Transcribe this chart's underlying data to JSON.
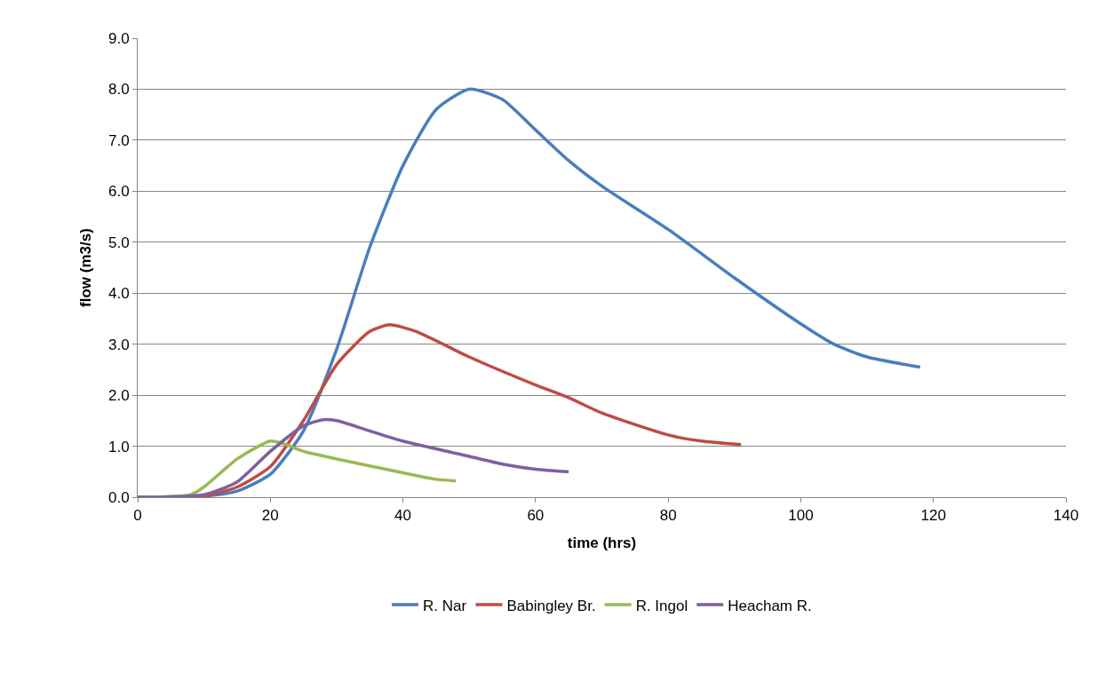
{
  "chart_data": {
    "type": "line",
    "xlabel": "time (hrs)",
    "ylabel": "flow (m3/s)",
    "xlim": [
      0,
      140
    ],
    "xticks": [
      0,
      20,
      40,
      60,
      80,
      100,
      120,
      140
    ],
    "ylim": [
      0,
      9
    ],
    "yticks": [
      {
        "value": 0,
        "label": "0.0"
      },
      {
        "value": 1,
        "label": "1.0"
      },
      {
        "value": 2,
        "label": "2.0"
      },
      {
        "value": 3,
        "label": "3.0"
      },
      {
        "value": 4,
        "label": "4.0"
      },
      {
        "value": 5,
        "label": "5.0"
      },
      {
        "value": 6,
        "label": "6.0"
      },
      {
        "value": 7,
        "label": "7.0"
      },
      {
        "value": 8,
        "label": "8.0"
      },
      {
        "value": 9,
        "label": "9.0"
      }
    ],
    "grid": "y",
    "legend": "bottom",
    "marker": "none",
    "line_style": "solid",
    "series": [
      {
        "name": "R. Nar",
        "color": "#4a7ebb",
        "x": [
          0,
          10,
          15,
          20,
          25,
          30,
          35,
          40,
          45,
          50,
          55,
          60,
          65,
          70,
          80,
          90,
          100,
          105,
          110,
          118
        ],
        "values": [
          0,
          0.02,
          0.12,
          0.45,
          1.3,
          2.9,
          4.9,
          6.5,
          7.6,
          8.0,
          7.8,
          7.2,
          6.6,
          6.1,
          5.25,
          4.3,
          3.4,
          3.0,
          2.75,
          2.55
        ]
      },
      {
        "name": "Babingley Br.",
        "color": "#be4b48",
        "x": [
          0,
          10,
          15,
          20,
          25,
          30,
          35,
          38,
          42,
          50,
          60,
          65,
          70,
          80,
          85,
          91
        ],
        "values": [
          0,
          0.02,
          0.2,
          0.6,
          1.5,
          2.6,
          3.25,
          3.38,
          3.25,
          2.75,
          2.2,
          1.95,
          1.65,
          1.22,
          1.1,
          1.03
        ]
      },
      {
        "name": "R. Ingol",
        "color": "#98b954",
        "x": [
          0,
          8,
          10,
          15,
          20,
          22,
          25,
          30,
          40,
          45,
          48
        ],
        "values": [
          0,
          0.05,
          0.2,
          0.75,
          1.1,
          1.05,
          0.9,
          0.75,
          0.48,
          0.35,
          0.32
        ]
      },
      {
        "name": "Heacham R.",
        "color": "#7d60a0",
        "x": [
          0,
          10,
          15,
          20,
          25,
          28,
          30,
          35,
          40,
          50,
          55,
          60,
          65
        ],
        "values": [
          0,
          0.05,
          0.3,
          0.9,
          1.4,
          1.52,
          1.5,
          1.3,
          1.1,
          0.8,
          0.65,
          0.55,
          0.5
        ]
      }
    ]
  }
}
